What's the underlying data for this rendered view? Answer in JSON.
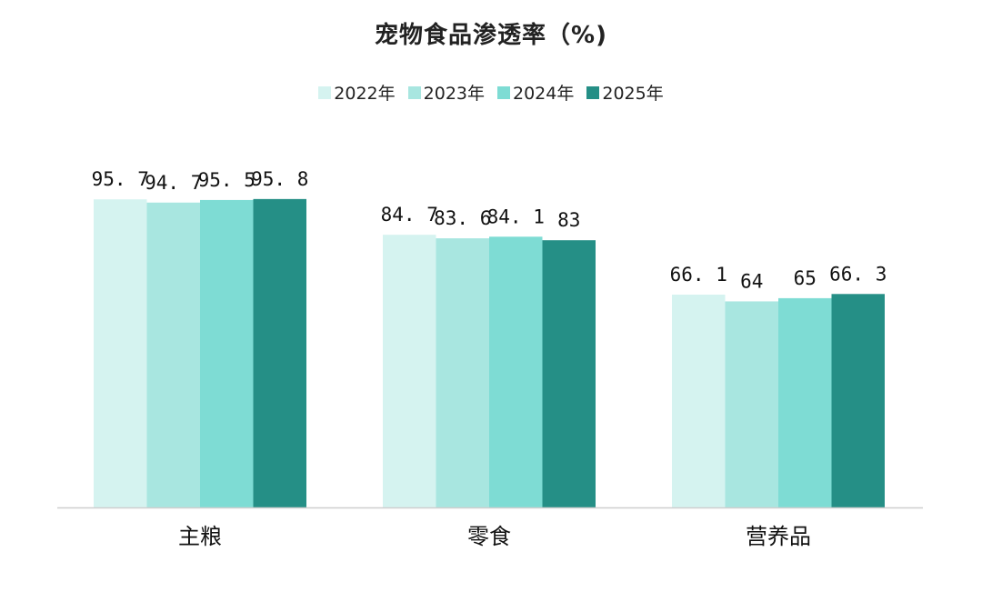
{
  "chart_data": {
    "type": "bar",
    "title": "宠物食品渗透率（%)",
    "categories": [
      "主粮",
      "零食",
      "营养品"
    ],
    "series": [
      {
        "name": "2022年",
        "color": "#d5f3f0",
        "values": [
          95.7,
          84.7,
          66.1
        ],
        "labels": [
          "95. 7",
          "84. 7",
          "66. 1"
        ]
      },
      {
        "name": "2023年",
        "color": "#a8e6e0",
        "values": [
          94.7,
          83.6,
          64
        ],
        "labels": [
          "94. 7",
          "83. 6",
          "64"
        ]
      },
      {
        "name": "2024年",
        "color": "#7edcd4",
        "values": [
          95.5,
          84.1,
          65
        ],
        "labels": [
          "95. 5",
          "84. 1",
          "65"
        ]
      },
      {
        "name": "2025年",
        "color": "#258f86",
        "values": [
          95.8,
          83,
          66.3
        ],
        "labels": [
          "95. 8",
          "83",
          "66. 3"
        ]
      }
    ],
    "ylim": [
      0,
      100
    ],
    "xlabel": "",
    "ylabel": "",
    "grid": false,
    "legend_position": "top"
  }
}
